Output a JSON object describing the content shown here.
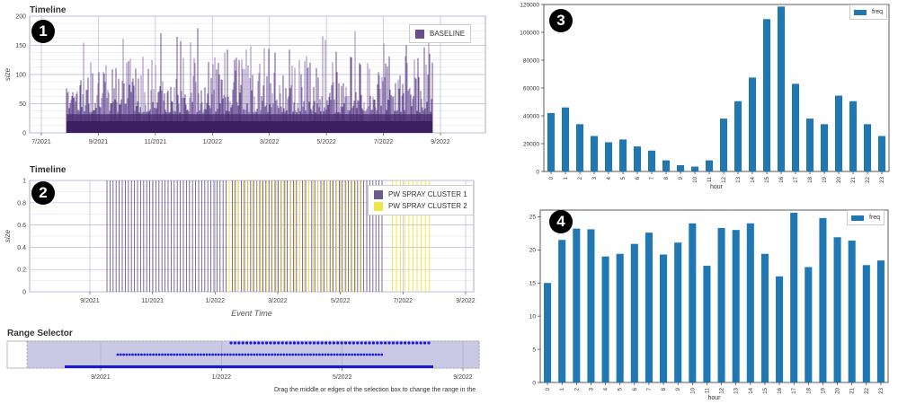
{
  "badges": [
    "1",
    "2",
    "3",
    "4"
  ],
  "colors": {
    "baseline": "#3b1f5e",
    "cluster1": "#6b5a8e",
    "cluster2": "#f2e64a",
    "bar": "#1f77b4",
    "range_dots": "#1a1ad6"
  },
  "chart_data": [
    {
      "id": "timeline-baseline",
      "type": "bar",
      "title": "Timeline",
      "ylabel": "size",
      "xlabel": "",
      "ylim": [
        0,
        200
      ],
      "yticks": [
        0,
        50,
        100,
        150,
        200
      ],
      "xticks": [
        "7/2021",
        "9/2021",
        "11/2021",
        "1/2022",
        "3/2022",
        "5/2022",
        "7/2022",
        "9/2022"
      ],
      "series": [
        {
          "name": "BASELINE",
          "range": [
            "8/2021",
            "8/2022"
          ],
          "values_max": 190,
          "typical_range": [
            30,
            170
          ]
        }
      ],
      "legend": "top-right"
    },
    {
      "id": "timeline-clusters",
      "type": "bar",
      "title": "Timeline",
      "ylabel": "size",
      "xlabel": "Event Time",
      "ylim": [
        0,
        1
      ],
      "yticks": [
        0,
        0.2,
        0.4,
        0.6,
        0.8,
        1
      ],
      "xticks": [
        "9/2021",
        "11/2021",
        "1/2022",
        "3/2022",
        "5/2022",
        "7/2022",
        "9/2022"
      ],
      "series": [
        {
          "name": "PW SPRAY CLUSTER 1",
          "value": 1,
          "range": [
            "10/2021",
            "6/2022"
          ]
        },
        {
          "name": "PW SPRAY CLUSTER 2",
          "value": 1,
          "range": [
            "1/2022",
            "8/2022"
          ]
        }
      ],
      "legend": "top-right"
    },
    {
      "id": "range-selector",
      "type": "scatter",
      "title": "Range Selector",
      "xticks": [
        "9/2021",
        "1/2022",
        "5/2022",
        "9/2022"
      ],
      "caption": "Drag the middle or edges of the selection box to change the range in the"
    },
    {
      "id": "hour-freq-1",
      "type": "bar",
      "title": "",
      "xlabel": "hour",
      "ylabel": "",
      "ylim": [
        0,
        120000
      ],
      "yticks": [
        0,
        20000,
        40000,
        60000,
        80000,
        100000,
        120000
      ],
      "categories": [
        "0",
        "1",
        "2",
        "3",
        "4",
        "5",
        "6",
        "7",
        "8",
        "9",
        "10",
        "11",
        "12",
        "13",
        "14",
        "15",
        "16",
        "17",
        "18",
        "19",
        "20",
        "21",
        "22",
        "23"
      ],
      "series": [
        {
          "name": "freq",
          "values": [
            42000,
            46000,
            34000,
            25500,
            21000,
            23000,
            18000,
            15000,
            8000,
            4500,
            3500,
            8000,
            38000,
            50500,
            67500,
            109500,
            118500,
            63000,
            38000,
            34000,
            54500,
            50500,
            34000,
            25500
          ]
        }
      ],
      "legend": "top-right"
    },
    {
      "id": "hour-freq-2",
      "type": "bar",
      "title": "",
      "xlabel": "hour",
      "ylabel": "",
      "ylim": [
        0,
        26
      ],
      "yticks": [
        0,
        5,
        10,
        15,
        20,
        25
      ],
      "categories": [
        "0",
        "1",
        "2",
        "3",
        "4",
        "5",
        "6",
        "7",
        "8",
        "9",
        "10",
        "11",
        "12",
        "13",
        "14",
        "15",
        "16",
        "17",
        "18",
        "19",
        "20",
        "21",
        "22",
        "23"
      ],
      "series": [
        {
          "name": "freq",
          "values": [
            15,
            21.5,
            23.2,
            23.1,
            19,
            19.4,
            20.9,
            22.6,
            19.3,
            21.1,
            24,
            17.6,
            23.3,
            23,
            24,
            19.4,
            16,
            25.6,
            17.4,
            24.8,
            21.9,
            21.4,
            17.7,
            18.4
          ]
        }
      ],
      "legend": "top-right"
    }
  ]
}
